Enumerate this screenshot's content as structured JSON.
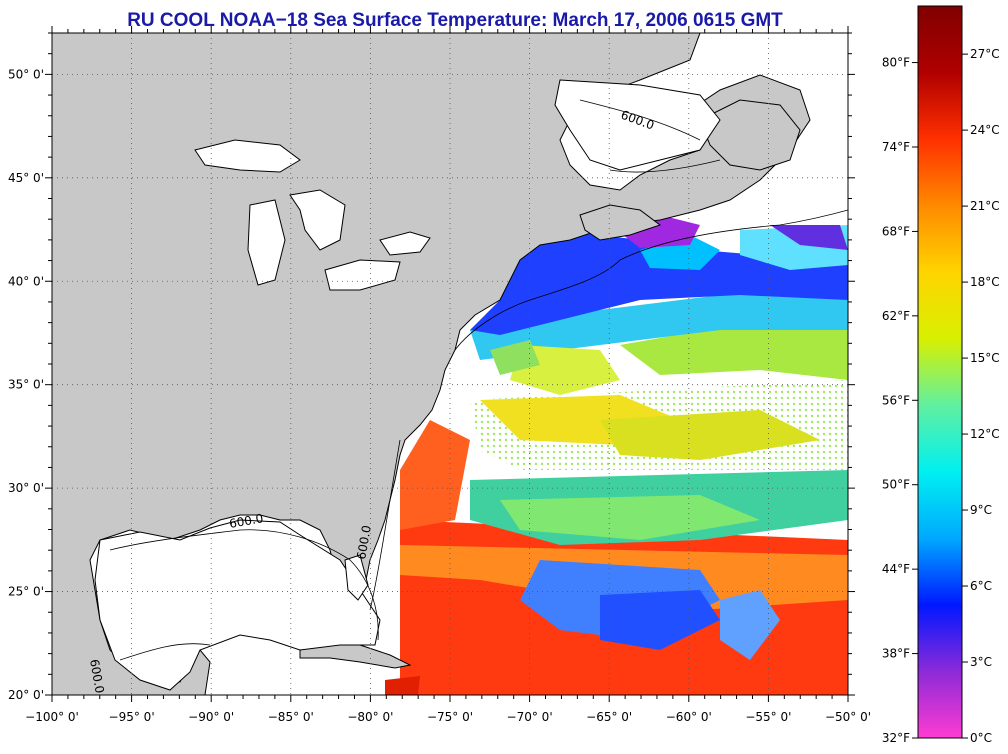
{
  "title": "RU COOL  NOAA−18  Sea Surface Temperature:  March 17, 2006 0615 GMT",
  "map": {
    "lon_range": [
      -100,
      -50
    ],
    "lat_range": [
      20,
      52
    ],
    "gridlines": "dotted",
    "lon_labels": [
      "−100° 0'",
      "−95° 0'",
      "−90° 0'",
      "−85° 0'",
      "−80° 0'",
      "−75° 0'",
      "−70° 0'",
      "−65° 0'",
      "−60° 0'",
      "−55° 0'",
      "−50° 0'"
    ],
    "lat_labels": [
      "20° 0'",
      "25° 0'",
      "30° 0'",
      "35° 0'",
      "40° 0'",
      "45° 0'",
      "50° 0'"
    ],
    "isobath_labels": [
      "600.0",
      "600.0",
      "600.0",
      "600.0"
    ],
    "land_color": "#c8c8c8",
    "cloud_color": "#ffffff"
  },
  "colorbar": {
    "fahrenheit_labels": [
      "32°F",
      "38°F",
      "44°F",
      "50°F",
      "56°F",
      "62°F",
      "68°F",
      "74°F",
      "80°F"
    ],
    "celsius_labels": [
      "0°C",
      "3°C",
      "6°C",
      "9°C",
      "12°C",
      "15°C",
      "18°C",
      "21°C",
      "24°C",
      "27°C"
    ],
    "fahrenheit_values": [
      32,
      38,
      44,
      50,
      56,
      62,
      68,
      74,
      80
    ],
    "celsius_values": [
      0,
      3,
      6,
      9,
      12,
      15,
      18,
      21,
      24,
      27
    ],
    "range_celsius": [
      0,
      28.9
    ],
    "colors": [
      "#ff3cd2",
      "#8c2ad8",
      "#0018ff",
      "#00a8ff",
      "#00f0f0",
      "#60f0a0",
      "#d8f000",
      "#ffd400",
      "#ff8a00",
      "#ff3000",
      "#b00000",
      "#800000"
    ]
  }
}
